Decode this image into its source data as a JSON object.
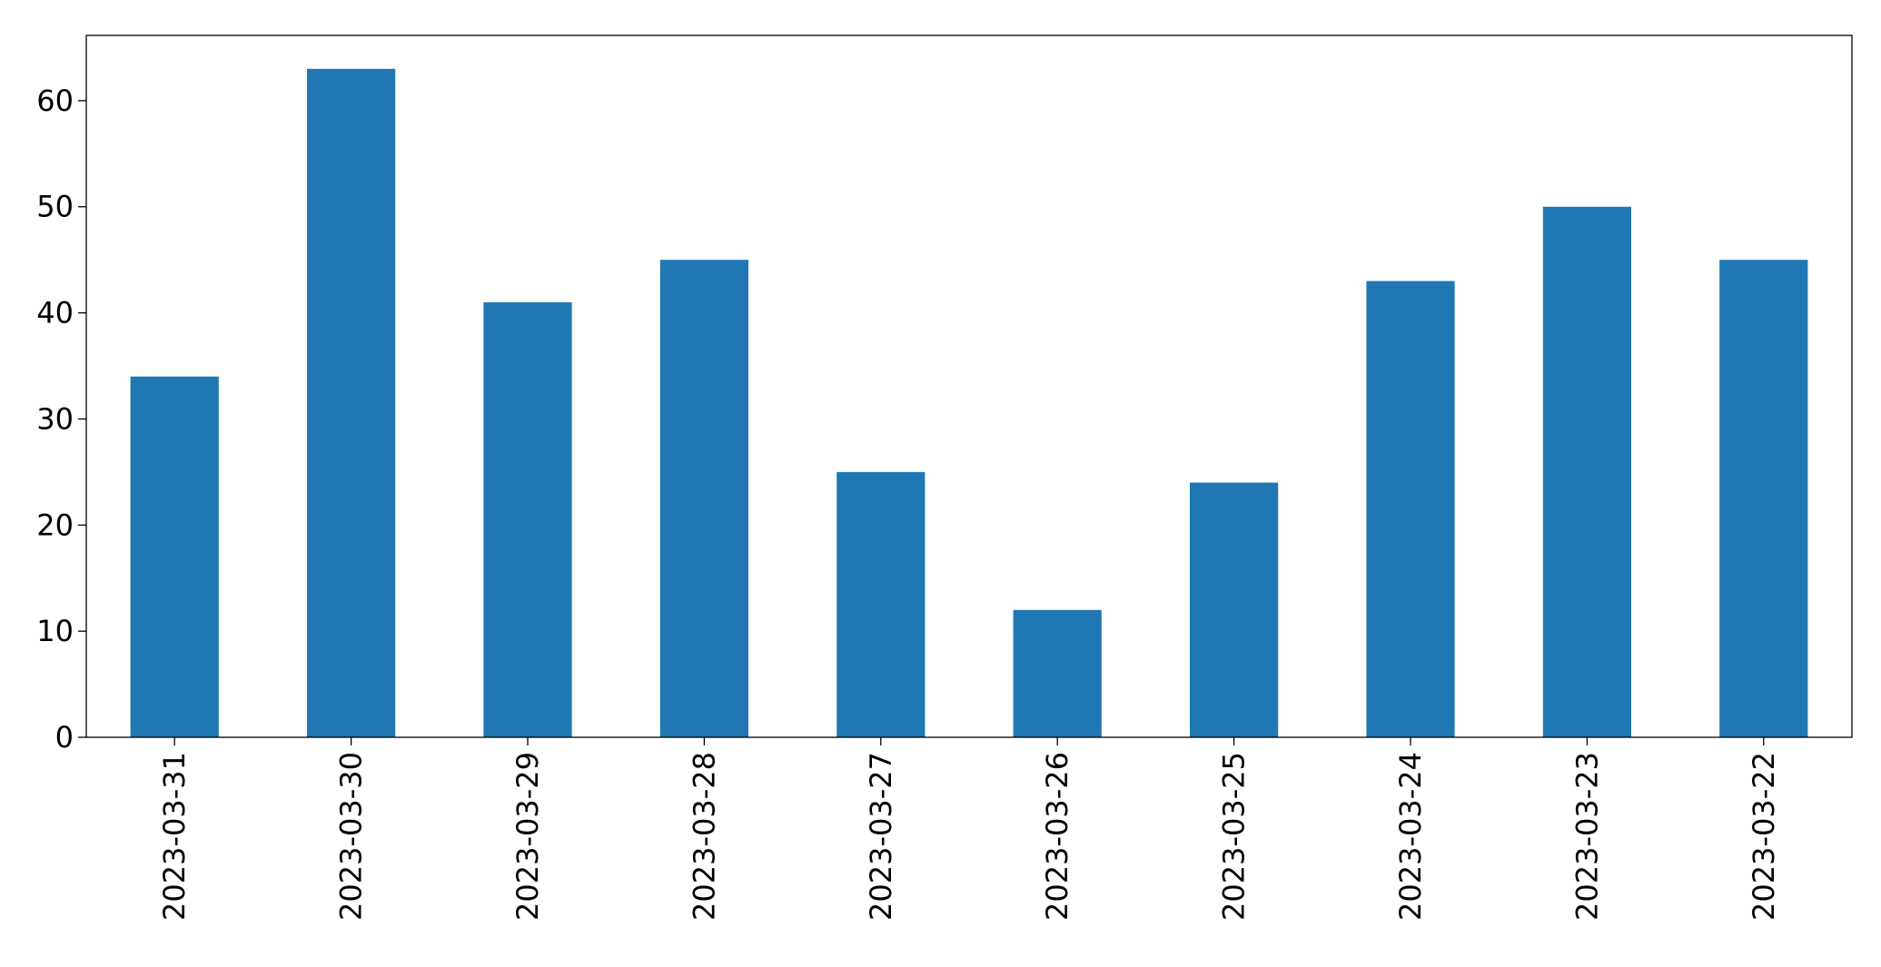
{
  "chart_data": {
    "type": "bar",
    "title": "",
    "xlabel": "",
    "ylabel": "",
    "categories": [
      "2023-03-31",
      "2023-03-30",
      "2023-03-29",
      "2023-03-28",
      "2023-03-27",
      "2023-03-26",
      "2023-03-25",
      "2023-03-24",
      "2023-03-23",
      "2023-03-22"
    ],
    "values": [
      34,
      63,
      41,
      45,
      25,
      12,
      24,
      43,
      50,
      45
    ],
    "ylim": [
      0,
      66.15
    ],
    "yticks": [
      0,
      10,
      20,
      30,
      40,
      50,
      60
    ],
    "grid": false,
    "legend": "none",
    "bar_color": "#1f77b4"
  }
}
